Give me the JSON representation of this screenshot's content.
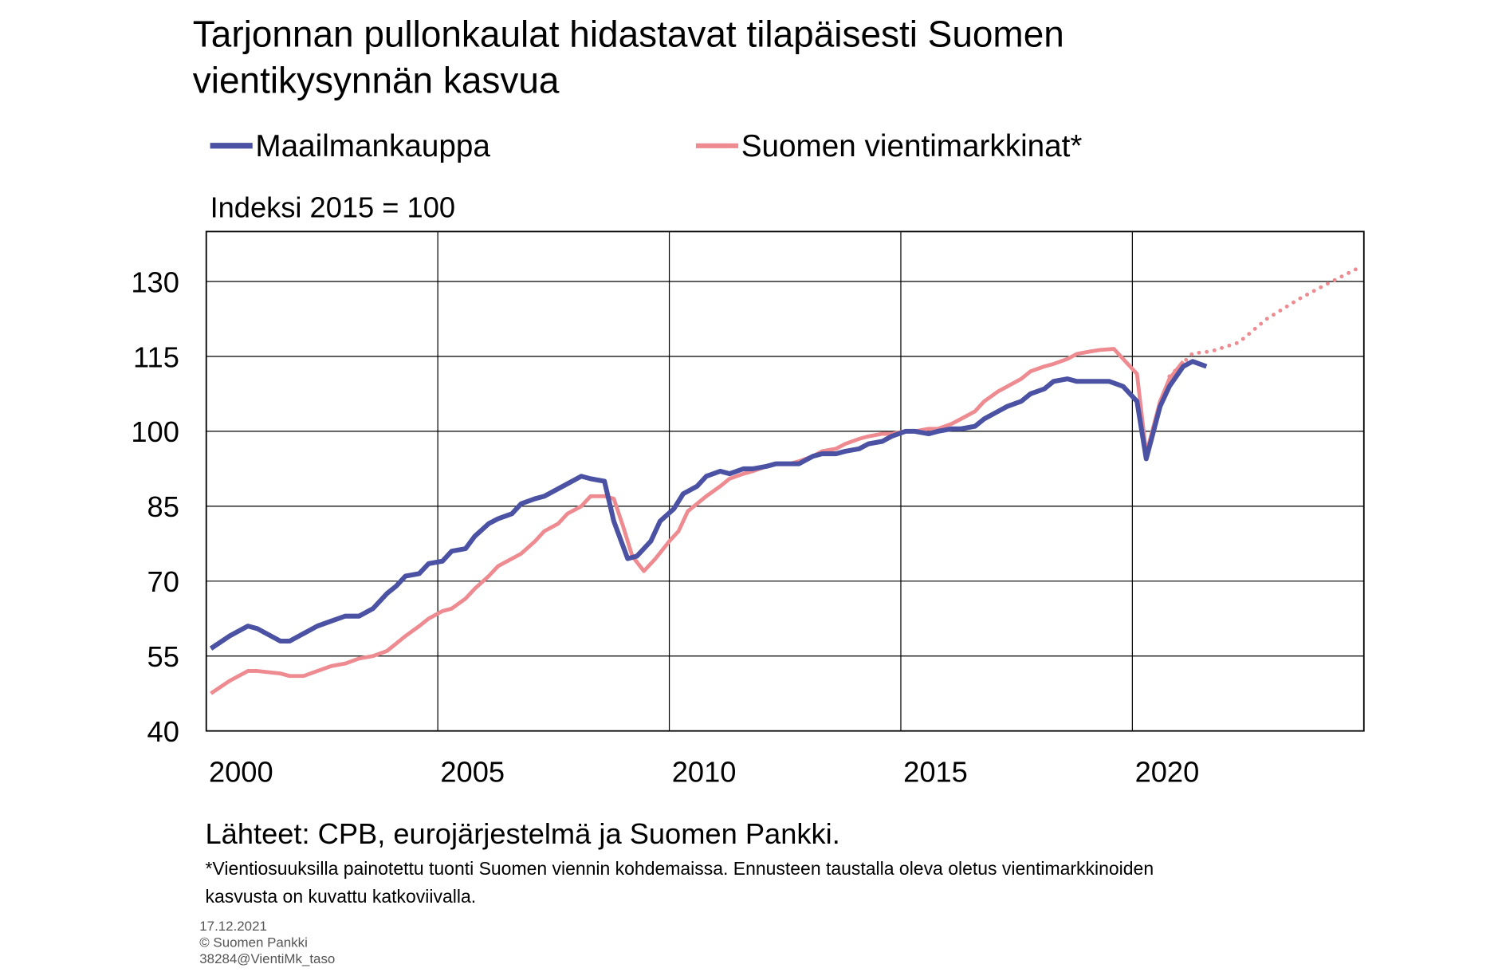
{
  "chart_data": {
    "type": "line",
    "title": [
      "Tarjonnan pullonkaulat hidastavat tilapäisesti Suomen",
      "vientikysynnän kasvua"
    ],
    "y_label": "Indeksi 2015 = 100",
    "source": "Lähteet: CPB, eurojärjestelmä ja Suomen Pankki.",
    "footnote": [
      "*Vientiosuuksilla painotettu tuonti Suomen viennin kohdemaissa. Ennusteen taustalla oleva oletus vientimarkkinoiden",
      "kasvusta on kuvattu katkoviivalla."
    ],
    "meta": [
      "17.12.2021",
      "© Suomen Pankki",
      "38284@VientiMk_taso"
    ],
    "xlim": [
      2000,
      2025
    ],
    "xticks": [
      2000,
      2005,
      2010,
      2015,
      2020
    ],
    "ylim": [
      40,
      140
    ],
    "yticks": [
      40,
      55,
      70,
      85,
      100,
      115,
      130
    ],
    "grid": true,
    "series": [
      {
        "name": "Maailmankauppa",
        "color": "#4b52a3",
        "width": 5,
        "x": [
          2000.1,
          2000.5,
          2000.9,
          2001.1,
          2001.6,
          2001.8,
          2002.1,
          2002.4,
          2002.7,
          2003.0,
          2003.3,
          2003.6,
          2003.9,
          2004.1,
          2004.3,
          2004.6,
          2004.8,
          2005.1,
          2005.3,
          2005.6,
          2005.8,
          2006.1,
          2006.3,
          2006.6,
          2006.8,
          2007.1,
          2007.3,
          2007.6,
          2007.8,
          2008.1,
          2008.3,
          2008.6,
          2008.8,
          2009.1,
          2009.3,
          2009.6,
          2009.8,
          2010.1,
          2010.3,
          2010.6,
          2010.8,
          2011.1,
          2011.3,
          2011.6,
          2011.8,
          2012.1,
          2012.3,
          2012.6,
          2012.8,
          2013.1,
          2013.3,
          2013.6,
          2013.8,
          2014.1,
          2014.3,
          2014.6,
          2014.8,
          2015.1,
          2015.3,
          2015.6,
          2015.8,
          2016.1,
          2016.3,
          2016.6,
          2016.8,
          2017.1,
          2017.3,
          2017.6,
          2017.8,
          2018.1,
          2018.3,
          2018.6,
          2018.8,
          2019.1,
          2019.3,
          2019.5,
          2019.8,
          2020.1,
          2020.3,
          2020.6,
          2020.8,
          2021.1,
          2021.3,
          2021.6
        ],
        "values": [
          56.5,
          59,
          61,
          60.5,
          58,
          58,
          59.5,
          61,
          62,
          63,
          63,
          64.5,
          67.5,
          69,
          71,
          71.5,
          73.5,
          74,
          76,
          76.5,
          79,
          81.5,
          82.5,
          83.5,
          85.5,
          86.5,
          87,
          88.5,
          89.5,
          91,
          90.5,
          90,
          82,
          74.5,
          75,
          78,
          82,
          84.5,
          87.5,
          89,
          91,
          92,
          91.5,
          92.5,
          92.5,
          93,
          93.5,
          93.5,
          93.5,
          95,
          95.5,
          95.5,
          96,
          96.5,
          97.5,
          98,
          99,
          100,
          100,
          99.5,
          100,
          100.5,
          100.5,
          101,
          102.5,
          104,
          105,
          106,
          107.5,
          108.5,
          110,
          110.5,
          110,
          110,
          110,
          110,
          109,
          106,
          94.5,
          105,
          109,
          113,
          114,
          113
        ]
      },
      {
        "name": "Suomen vientimarkkinat*",
        "color": "#ee8b91",
        "width": 4,
        "x": [
          2000.1,
          2000.5,
          2000.9,
          2001.1,
          2001.6,
          2001.8,
          2002.1,
          2002.4,
          2002.7,
          2003.0,
          2003.3,
          2003.6,
          2003.9,
          2004.1,
          2004.3,
          2004.6,
          2004.8,
          2005.1,
          2005.3,
          2005.6,
          2005.8,
          2006.1,
          2006.3,
          2006.6,
          2006.8,
          2007.1,
          2007.3,
          2007.6,
          2007.8,
          2008.1,
          2008.3,
          2008.6,
          2008.8,
          2009.0,
          2009.2,
          2009.45,
          2009.7,
          2010.0,
          2010.2,
          2010.4,
          2010.6,
          2010.8,
          2011.1,
          2011.3,
          2011.6,
          2011.8,
          2012.1,
          2012.3,
          2012.6,
          2012.8,
          2013.1,
          2013.3,
          2013.6,
          2013.8,
          2014.1,
          2014.3,
          2014.6,
          2014.8,
          2015.1,
          2015.3,
          2015.6,
          2015.8,
          2016.1,
          2016.3,
          2016.6,
          2016.8,
          2017.1,
          2017.3,
          2017.6,
          2017.8,
          2018.1,
          2018.3,
          2018.6,
          2018.8,
          2019.1,
          2019.3,
          2019.6,
          2019.8,
          2020.1,
          2020.3,
          2020.6,
          2020.8,
          2021.1
        ],
        "values": [
          47.5,
          50,
          52,
          52,
          51.5,
          51,
          51,
          52,
          53,
          53.5,
          54.5,
          55,
          56,
          57.5,
          59,
          61,
          62.5,
          64,
          64.5,
          66.5,
          68.5,
          71,
          73,
          74.5,
          75.5,
          78,
          80,
          81.5,
          83.5,
          85,
          87,
          87,
          86.5,
          81,
          75,
          72,
          74.5,
          78,
          80,
          84,
          85.5,
          87,
          89,
          90.5,
          91.5,
          92,
          93,
          93.5,
          93.5,
          94,
          95,
          96,
          96.5,
          97.5,
          98.5,
          99,
          99.5,
          99.5,
          100,
          100,
          100.5,
          100.5,
          101.5,
          102.5,
          104,
          106,
          108,
          109,
          110.5,
          112,
          113,
          113.5,
          114.5,
          115.5,
          116,
          116.3,
          116.5,
          114.5,
          111.5,
          95.5,
          106,
          110.5,
          114
        ]
      },
      {
        "color": "#ee8b91",
        "width": 4,
        "dashed": true,
        "x": [
          2020.8,
          2021.3,
          2021.7,
          2022.3,
          2022.9,
          2023.6,
          2024.2,
          2024.9
        ],
        "values": [
          111,
          115.6,
          116,
          117.8,
          122.5,
          126.5,
          129.5,
          132.8
        ]
      }
    ]
  }
}
